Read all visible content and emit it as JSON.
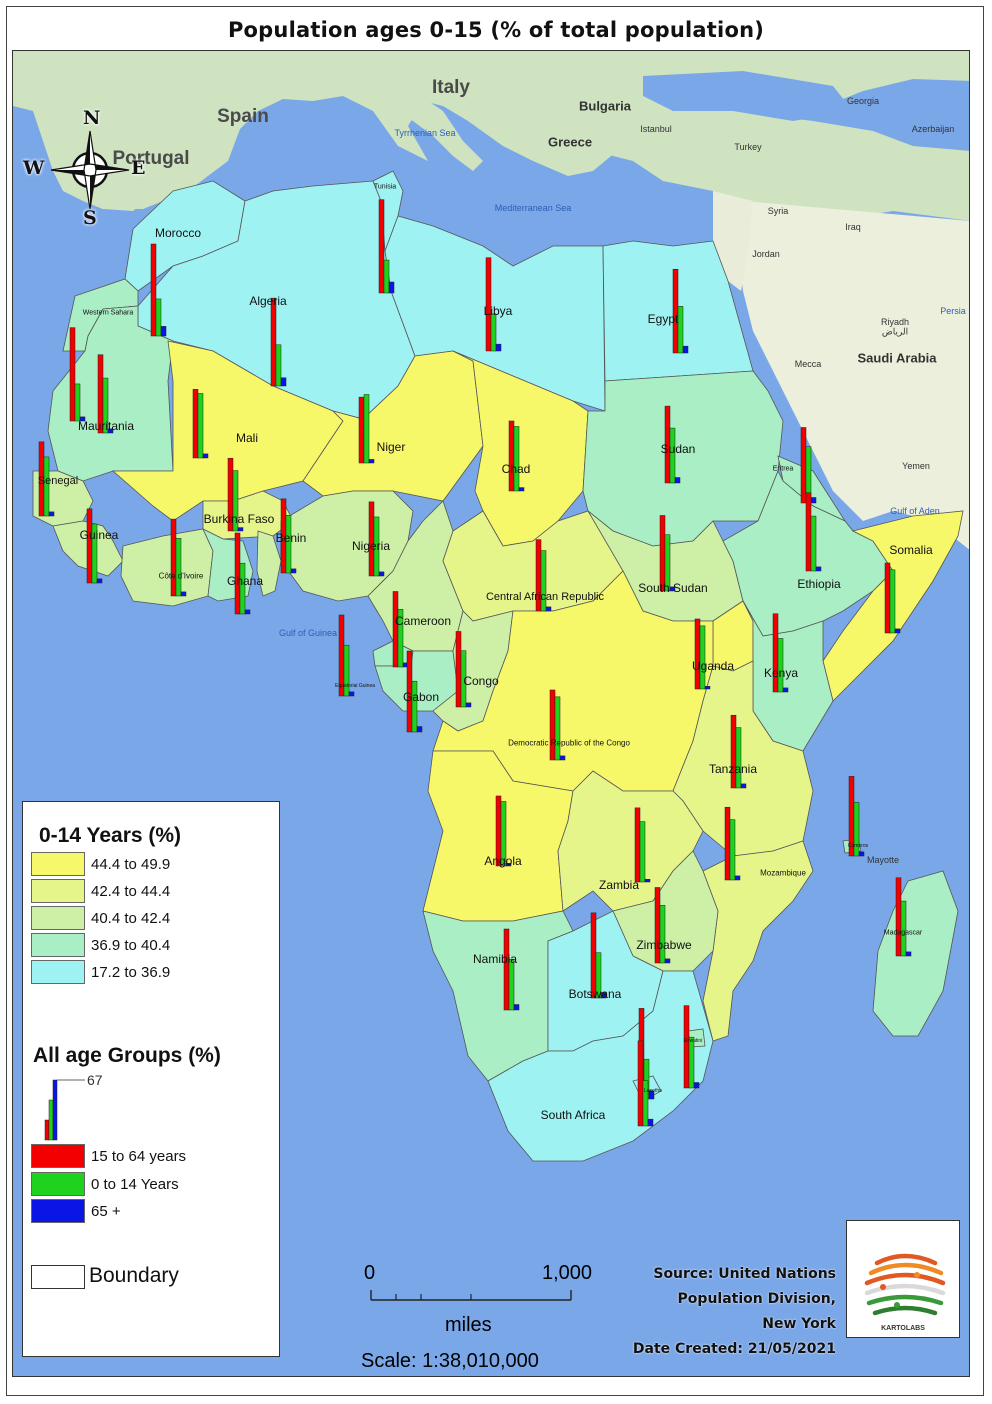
{
  "title": "Population ages 0-15 (% of total population)",
  "compass": {
    "n": "N",
    "s": "S",
    "e": "E",
    "w": "W"
  },
  "legend": {
    "choropleth_title": "0-14 Years (%)",
    "classes": [
      {
        "label": "44.4  to  49.9",
        "color": "#f7f76a"
      },
      {
        "label": "42.4  to  44.4",
        "color": "#e6f58a"
      },
      {
        "label": "40.4  to  42.4",
        "color": "#cdf0a6"
      },
      {
        "label": "36.9  to  40.4",
        "color": "#a9eec4"
      },
      {
        "label": "17.2  to  36.9",
        "color": "#9ff2f2"
      }
    ],
    "bars_title": "All age Groups (%)",
    "bar_max_label": "67",
    "series": [
      {
        "label": "15 to 64 years",
        "color": "#f20000"
      },
      {
        "label": "0 to 14 Years",
        "color": "#1ed21e"
      },
      {
        "label": "65 +",
        "color": "#0a16e6"
      }
    ],
    "boundary_label": "Boundary"
  },
  "scale": {
    "zero": "0",
    "max": "1,000",
    "unit": "miles",
    "ratio": "Scale: 1:38,010,000"
  },
  "source": {
    "line1": "Source: United Nations",
    "line2": "Population Division,",
    "line3": "New York",
    "date": "Date Created: 21/05/2021"
  },
  "logo_text": "KARTOLABS",
  "colors": {
    "ocean": "#7aa7e8",
    "land_other": "#e8ecd9",
    "boundary": "#555555"
  },
  "basemap_labels": [
    {
      "text": "Italy",
      "size": "big"
    },
    {
      "text": "Spain",
      "size": "big"
    },
    {
      "text": "Portugal",
      "size": "big"
    },
    {
      "text": "Bulgaria",
      "size": "mid"
    },
    {
      "text": "Greece",
      "size": "mid"
    },
    {
      "text": "Istanbul",
      "size": "small"
    },
    {
      "text": "Turkey",
      "size": "small"
    },
    {
      "text": "Tyrrhenian Sea",
      "size": "small"
    },
    {
      "text": "Mediterranean Sea",
      "size": "small"
    },
    {
      "text": "Jordan",
      "size": "small"
    },
    {
      "text": "Riyadh",
      "size": "small"
    },
    {
      "text": "الرياض",
      "size": "small"
    },
    {
      "text": "Saudi Arabia",
      "size": "mid"
    },
    {
      "text": "Mecca",
      "size": "small"
    },
    {
      "text": "Yemen",
      "size": "small"
    },
    {
      "text": "Iraq",
      "size": "small"
    },
    {
      "text": "Syria",
      "size": "small"
    },
    {
      "text": "Georgia",
      "size": "small"
    },
    {
      "text": "Azerbaijan",
      "size": "small"
    },
    {
      "text": "Persia",
      "size": "small"
    },
    {
      "text": "Gulf of Guinea",
      "size": "small"
    },
    {
      "text": "Gulf of Aden",
      "size": "small"
    },
    {
      "text": "Mayotte",
      "size": "small"
    }
  ],
  "countries": [
    {
      "name": "Morocco",
      "class": 4,
      "v1564": 67,
      "v014": 27,
      "v65": 7
    },
    {
      "name": "Western Sahara",
      "class": 3,
      "v1564": 68,
      "v014": 27,
      "v65": 3
    },
    {
      "name": "Algeria",
      "class": 4,
      "v1564": 64,
      "v014": 30,
      "v65": 6
    },
    {
      "name": "Tunisia",
      "class": 4,
      "v1564": 68,
      "v014": 24,
      "v65": 8
    },
    {
      "name": "Libya",
      "class": 4,
      "v1564": 68,
      "v014": 27,
      "v65": 5
    },
    {
      "name": "Egypt",
      "class": 4,
      "v1564": 61,
      "v014": 34,
      "v65": 5
    },
    {
      "name": "Mauritania",
      "class": 3,
      "v1564": 57,
      "v014": 40,
      "v65": 3
    },
    {
      "name": "Mali",
      "class": 0,
      "v1564": 50,
      "v014": 47,
      "v65": 3
    },
    {
      "name": "Niger",
      "class": 0,
      "v1564": 48,
      "v014": 49.9,
      "v65": 2.6
    },
    {
      "name": "Chad",
      "class": 0,
      "v1564": 51,
      "v014": 47,
      "v65": 2.5
    },
    {
      "name": "Sudan",
      "class": 3,
      "v1564": 56,
      "v014": 40,
      "v65": 4
    },
    {
      "name": "Eritrea",
      "class": 3,
      "v1564": 55,
      "v014": 41,
      "v65": 4
    },
    {
      "name": "Senegal",
      "class": 2,
      "v1564": 54,
      "v014": 43,
      "v65": 3
    },
    {
      "name": "Guinea",
      "class": 2,
      "v1564": 54,
      "v014": 43,
      "v65": 3
    },
    {
      "name": "Burkina Faso",
      "class": 1,
      "v1564": 53,
      "v014": 44,
      "v65": 2.5
    },
    {
      "name": "Côte d'Ivoire",
      "class": 2,
      "v1564": 56,
      "v014": 42,
      "v65": 3
    },
    {
      "name": "Ghana",
      "class": 3,
      "v1564": 59,
      "v014": 37,
      "v65": 3
    },
    {
      "name": "Benin",
      "class": 2,
      "v1564": 54,
      "v014": 42,
      "v65": 3
    },
    {
      "name": "Nigeria",
      "class": 2,
      "v1564": 54,
      "v014": 43,
      "v65": 3
    },
    {
      "name": "Cameroon",
      "class": 2,
      "v1564": 55,
      "v014": 42,
      "v65": 3
    },
    {
      "name": "Central African Republic",
      "class": 1,
      "v1564": 52,
      "v014": 44,
      "v65": 3
    },
    {
      "name": "South Sudan",
      "class": 2,
      "v1564": 55,
      "v014": 41,
      "v65": 3
    },
    {
      "name": "Ethiopia",
      "class": 3,
      "v1564": 57,
      "v014": 40,
      "v65": 3
    },
    {
      "name": "Somalia",
      "class": 0,
      "v1564": 51,
      "v014": 46,
      "v65": 3
    },
    {
      "name": "Equatorial Guinea",
      "class": 3,
      "v1564": 59,
      "v014": 37,
      "v65": 3
    },
    {
      "name": "Gabon",
      "class": 3,
      "v1564": 59,
      "v014": 37,
      "v65": 4
    },
    {
      "name": "Congo",
      "class": 2,
      "v1564": 55,
      "v014": 41,
      "v65": 3
    },
    {
      "name": "Uganda",
      "class": 0,
      "v1564": 51,
      "v014": 46,
      "v65": 2
    },
    {
      "name": "Kenya",
      "class": 3,
      "v1564": 57,
      "v014": 39,
      "v65": 3
    },
    {
      "name": "Democratic Republic of the Congo",
      "class": 0,
      "v1564": 51,
      "v014": 46,
      "v65": 3
    },
    {
      "name": "Tanzania",
      "class": 1,
      "v1564": 53,
      "v014": 44,
      "v65": 3
    },
    {
      "name": "Angola",
      "class": 0,
      "v1564": 51,
      "v014": 47,
      "v65": 2
    },
    {
      "name": "Zambia",
      "class": 1,
      "v1564": 54,
      "v014": 44,
      "v65": 2
    },
    {
      "name": "Mozambique",
      "class": 1,
      "v1564": 53,
      "v014": 44,
      "v65": 3
    },
    {
      "name": "Comoros",
      "class": 3,
      "v1564": 58,
      "v014": 39,
      "v65": 3
    },
    {
      "name": "Madagascar",
      "class": 3,
      "v1564": 57,
      "v014": 40,
      "v65": 3
    },
    {
      "name": "Zimbabwe",
      "class": 2,
      "v1564": 55,
      "v014": 42,
      "v65": 3
    },
    {
      "name": "Namibia",
      "class": 3,
      "v1564": 59,
      "v014": 37,
      "v65": 4
    },
    {
      "name": "Botswana",
      "class": 4,
      "v1564": 62,
      "v014": 33,
      "v65": 4
    },
    {
      "name": "South Africa",
      "class": 4,
      "v1564": 66,
      "v014": 29,
      "v65": 6
    },
    {
      "name": "Lesotho",
      "class": 4,
      "v1564": 62,
      "v014": 33,
      "v65": 5
    },
    {
      "name": "Eswatini",
      "class": 3,
      "v1564": 60,
      "v014": 37,
      "v65": 4
    }
  ]
}
